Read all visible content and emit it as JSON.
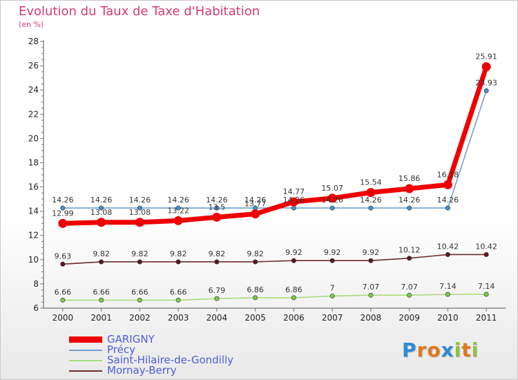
{
  "header": {
    "title": "Evolution du Taux de Taxe d'Habitation",
    "subtitle": "(en %)"
  },
  "brand": {
    "logo_letters": [
      "P",
      "r",
      "o",
      "x",
      "i",
      "t",
      "i"
    ],
    "logo_colors": [
      "#2e8ad8",
      "#e07a1e",
      "#e07a1e",
      "#2e8ad8",
      "#8cc63f",
      "#e07a1e",
      "#8cc63f"
    ]
  },
  "chart_data": {
    "type": "line",
    "title": "Evolution du Taux de Taxe d'Habitation",
    "ylabel": "(en %)",
    "xlabel": "",
    "ylim": [
      6,
      28
    ],
    "yticks": [
      "6",
      "8",
      "10",
      "12",
      "14",
      "16",
      "18",
      "20",
      "22",
      "24",
      "26",
      "28"
    ],
    "categories": [
      "2000",
      "2001",
      "2002",
      "2003",
      "2004",
      "2005",
      "2006",
      "2007",
      "2008",
      "2009",
      "2010",
      "2011"
    ],
    "grid": false,
    "legend_position": "bottom-left",
    "series": [
      {
        "name": "Précy",
        "color": "#6fa1cc",
        "point_color": "#4a8ec8",
        "values": [
          14.26,
          14.26,
          14.26,
          14.26,
          14.26,
          14.26,
          14.26,
          14.26,
          14.26,
          14.26,
          14.26,
          23.93
        ],
        "labels": [
          "14.26",
          "14.26",
          "14.26",
          "14.26",
          "14.26",
          "14.26",
          "14.26",
          "14.26",
          "14.26",
          "14.26",
          "14.26",
          "23.93"
        ]
      },
      {
        "name": "Saint-Hilaire-de-Gondilly",
        "color": "#a8dc7c",
        "point_color": "#7cc84a",
        "values": [
          6.66,
          6.66,
          6.66,
          6.66,
          6.79,
          6.86,
          6.86,
          7,
          7.07,
          7.07,
          7.14,
          7.14
        ],
        "labels": [
          "6.66",
          "6.66",
          "6.66",
          "6.66",
          "6.79",
          "6.86",
          "6.86",
          "7",
          "7.07",
          "7.07",
          "7.14",
          "7.14"
        ]
      },
      {
        "name": "Mornay-Berry",
        "color": "#6b2a2a",
        "point_color": "#5a1a1a",
        "values": [
          9.63,
          9.82,
          9.82,
          9.82,
          9.82,
          9.82,
          9.92,
          9.92,
          9.92,
          10.12,
          10.42,
          10.42
        ],
        "labels": [
          "9.63",
          "9.82",
          "9.82",
          "9.82",
          "9.82",
          "9.82",
          "9.92",
          "9.92",
          "9.92",
          "10.12",
          "10.42",
          "10.42"
        ]
      },
      {
        "name": "GARIGNY",
        "color": "#ee0000",
        "point_color": "#ee0000",
        "values": [
          12.99,
          13.08,
          13.08,
          13.22,
          13.5,
          13.77,
          14.77,
          15.07,
          15.54,
          15.86,
          16.18,
          25.91
        ],
        "labels": [
          "12.99",
          "13.08",
          "13.08",
          "13.22",
          "13.5",
          "13.77",
          "14.77",
          "15.07",
          "15.54",
          "15.86",
          "16.18",
          "25.91"
        ]
      }
    ],
    "legend": [
      "GARIGNY",
      "Précy",
      "Saint-Hilaire-de-Gondilly",
      "Mornay-Berry"
    ]
  }
}
